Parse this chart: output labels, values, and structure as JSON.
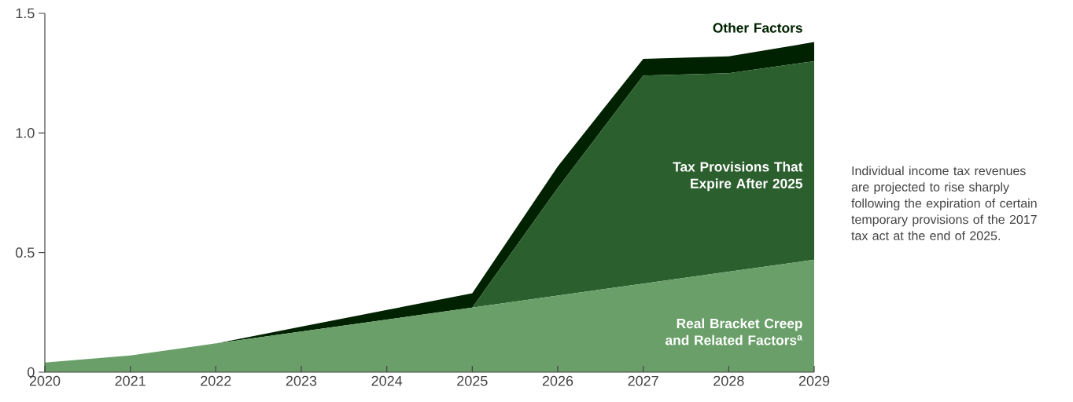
{
  "chart_data": {
    "type": "area",
    "stacked": true,
    "x": [
      2020,
      2021,
      2022,
      2023,
      2024,
      2025,
      2026,
      2027,
      2028,
      2029
    ],
    "series": [
      {
        "name": "Real Bracket Creep and Related Factors$^{a}$",
        "color": "#6a9f6a",
        "values": [
          0.04,
          0.07,
          0.12,
          0.17,
          0.22,
          0.27,
          0.32,
          0.37,
          0.42,
          0.47
        ]
      },
      {
        "name": "Tax Provisions That Expire After 2025",
        "color": "#2c5f2e",
        "values": [
          0,
          0,
          0,
          0,
          0,
          0,
          0.45,
          0.87,
          0.83,
          0.83
        ]
      },
      {
        "name": "Other Factors",
        "color": "#002200",
        "values": [
          0,
          0,
          0,
          0.02,
          0.04,
          0.06,
          0.09,
          0.07,
          0.07,
          0.08
        ]
      }
    ],
    "xlim": [
      2020,
      2029
    ],
    "ylim": [
      0,
      1.5
    ],
    "xticks": [
      2020,
      2021,
      2022,
      2023,
      2024,
      2025,
      2026,
      2027,
      2028,
      2029
    ],
    "yticks": [
      0,
      0.5,
      {
        "value": 1,
        "label": "1.0"
      },
      1.5
    ],
    "grid": false,
    "annotations": [
      "Individual income tax revenues are projected to rise sharply following the expiration of certain temporary provisions of the 2017 tax act at the end of 2025."
    ]
  }
}
